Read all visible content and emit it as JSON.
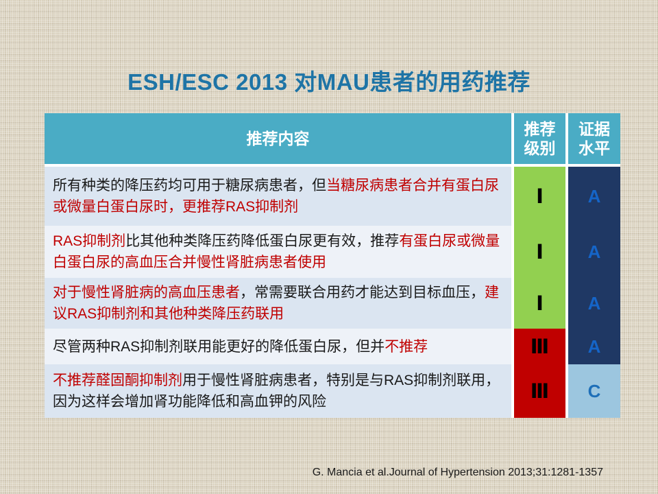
{
  "slide": {
    "title": "ESH/ESC 2013 对MAU患者的用药推荐",
    "citation": "G. Mancia et al.Journal of Hypertension 2013;31:1281-1357"
  },
  "colors": {
    "background_linen": "#DBD3C0",
    "title_blue": "#1E74A6",
    "header_teal": "#4AACC5",
    "header_text": "#FFFFFF",
    "row_band_blue": "#DBE5F1",
    "row_band_light": "#EEF2F8",
    "body_text_black": "#1A1A1A",
    "body_text_red": "#C00000",
    "grade_green": "#92D050",
    "grade_red": "#C00000",
    "evidence_navy": "#1F3864",
    "evidence_lightblue": "#9CC6DF",
    "evidence_letter_blue": "#1565C8",
    "evidence_letter_c": "#1E6FB8"
  },
  "table": {
    "headers": {
      "content": "推荐内容",
      "grade": [
        "推荐",
        "级别"
      ],
      "evidence": [
        "证据",
        "水平"
      ]
    },
    "rows": [
      {
        "row_bg": "#DBE5F1",
        "segments": [
          {
            "text": "所有种类的降压药均可用于糖尿病患者，但",
            "color": "#1A1A1A"
          },
          {
            "text": "当糖尿病患者合并有蛋白尿或微量白蛋白尿时，更推荐RAS抑制剂",
            "color": "#C00000"
          }
        ],
        "grade": {
          "text": "Ⅰ",
          "bg": "#92D050",
          "color": "#000000"
        },
        "evidence": {
          "text": "A",
          "bg": "#1F3864",
          "color": "#1565C8"
        }
      },
      {
        "row_bg": "#EEF2F8",
        "segments": [
          {
            "text": "RAS抑制剂",
            "color": "#C00000"
          },
          {
            "text": "比其他种类降压药降低蛋白尿更有效，推荐",
            "color": "#1A1A1A"
          },
          {
            "text": "有蛋白尿或微量白蛋白尿的高血压合并慢性肾脏病患者使用",
            "color": "#C00000"
          }
        ],
        "grade": {
          "text": "Ⅰ",
          "bg": "#92D050",
          "color": "#000000"
        },
        "evidence": {
          "text": "A",
          "bg": "#1F3864",
          "color": "#1565C8"
        }
      },
      {
        "row_bg": "#DBE5F1",
        "segments": [
          {
            "text": "对于慢性肾脏病的高血压患者",
            "color": "#C00000"
          },
          {
            "text": "，常需要联合用药才能达到目标血压，",
            "color": "#1A1A1A"
          },
          {
            "text": "建议RAS抑制剂和其他种类降压药联用",
            "color": "#C00000"
          }
        ],
        "grade": {
          "text": "Ⅰ",
          "bg": "#92D050",
          "color": "#000000"
        },
        "evidence": {
          "text": "A",
          "bg": "#1F3864",
          "color": "#1565C8"
        }
      },
      {
        "row_bg": "#EEF2F8",
        "segments": [
          {
            "text": "尽管两种RAS抑制剂联用能更好的降低蛋白尿，但并",
            "color": "#1A1A1A"
          },
          {
            "text": "不推荐",
            "color": "#C00000"
          }
        ],
        "grade": {
          "text": "Ⅲ",
          "bg": "#C00000",
          "color": "#000000"
        },
        "evidence": {
          "text": "A",
          "bg": "#1F3864",
          "color": "#1565C8"
        }
      },
      {
        "row_bg": "#DBE5F1",
        "segments": [
          {
            "text": "不推荐醛固酮抑制剂",
            "color": "#C00000"
          },
          {
            "text": "用于慢性肾脏病患者，特别是与RAS抑制剂联用，因为这样会增加肾功能降低和高血钾的风险",
            "color": "#1A1A1A"
          }
        ],
        "grade": {
          "text": "Ⅲ",
          "bg": "#C00000",
          "color": "#000000"
        },
        "evidence": {
          "text": "C",
          "bg": "#9CC6DF",
          "color": "#1E6FB8"
        }
      }
    ]
  }
}
